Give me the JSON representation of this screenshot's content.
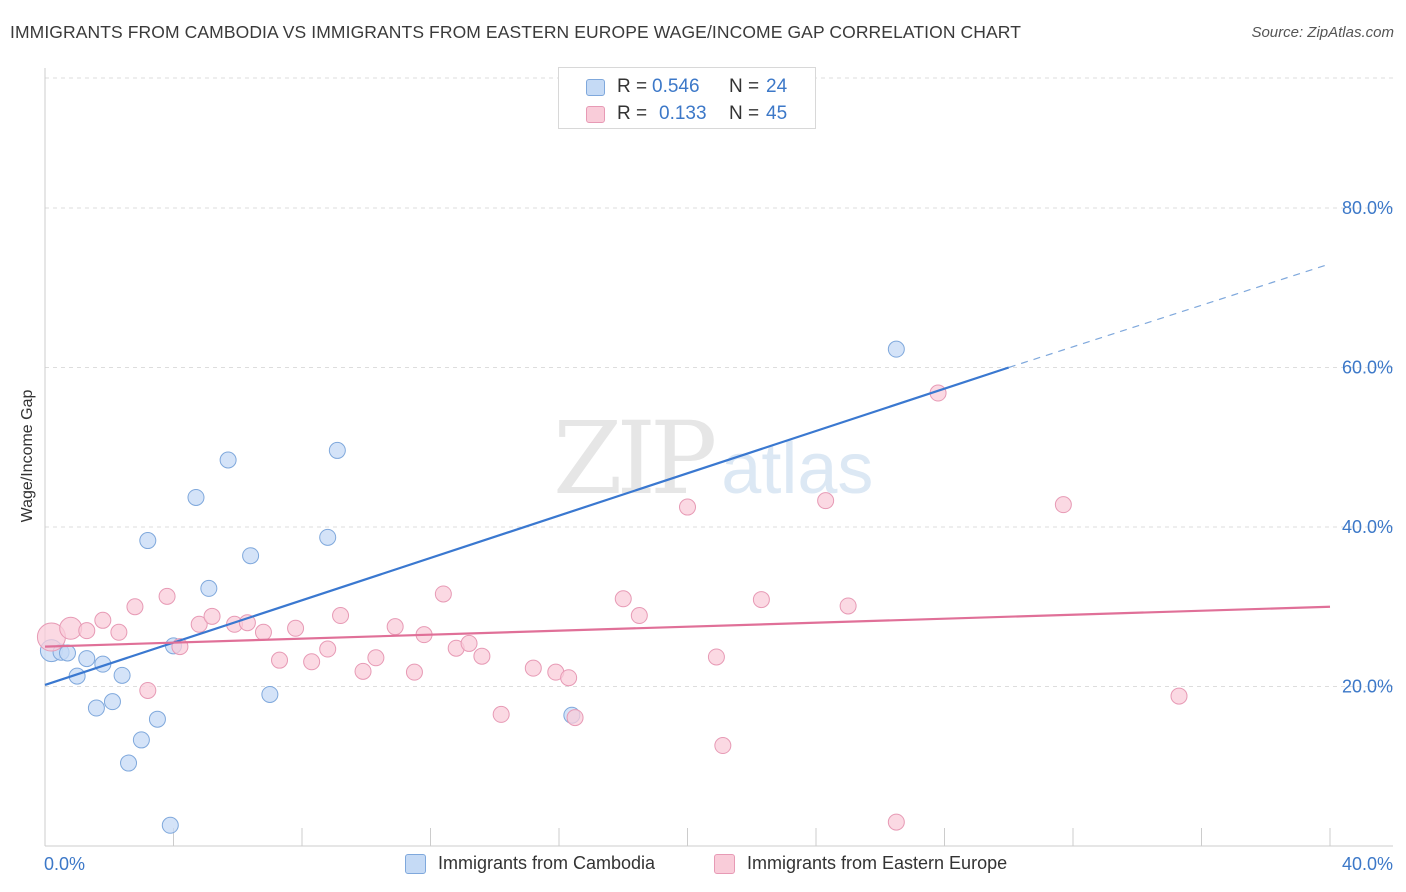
{
  "header": {
    "title": "IMMIGRANTS FROM CAMBODIA VS IMMIGRANTS FROM EASTERN EUROPE WAGE/INCOME GAP CORRELATION CHART",
    "source": "Source: ZipAtlas.com"
  },
  "watermark": {
    "zip": "ZIP",
    "atlas": "atlas"
  },
  "colors": {
    "blue": "#3a78d0",
    "blue_fill": "#c5daf5",
    "pink": "#e07098",
    "pink_fill": "#f9ccd9",
    "axis_text": "#3c78c8",
    "grid": "#dddddd"
  },
  "legend": {
    "rows": [
      {
        "r_label": "R =",
        "r_value": "0.546",
        "n_label": "N =",
        "n_value": "24"
      },
      {
        "r_label": "R =",
        "r_value": "0.133",
        "n_label": "N =",
        "n_value": "45"
      }
    ]
  },
  "bottom_legend": {
    "items": [
      {
        "label": "Immigrants from Cambodia"
      },
      {
        "label": "Immigrants from Eastern Europe"
      }
    ]
  },
  "chart_data": {
    "type": "scatter",
    "title": "IMMIGRANTS FROM CAMBODIA VS IMMIGRANTS FROM EASTERN EUROPE WAGE/INCOME GAP CORRELATION CHART",
    "xlabel": "",
    "ylabel": "Wage/Income Gap",
    "xlim": [
      0,
      40
    ],
    "ylim": [
      0,
      80
    ],
    "x_ticks_labeled": [
      {
        "value": 0,
        "label": "0.0%"
      },
      {
        "value": 40,
        "label": "40.0%"
      }
    ],
    "y_ticks": [
      {
        "value": 20,
        "label": "20.0%"
      },
      {
        "value": 40,
        "label": "40.0%"
      },
      {
        "value": 60,
        "label": "60.0%"
      },
      {
        "value": 80,
        "label": "80.0%"
      }
    ],
    "grid": "horizontal dashed",
    "legend_position": "top-center",
    "series": [
      {
        "name": "Immigrants from Cambodia",
        "color": "#3a78d0",
        "fill": "#c5daf5",
        "R": 0.546,
        "N": 24,
        "trend": {
          "x0": 0,
          "y0": 20.2,
          "x1": 30,
          "y1": 60.0,
          "dashed_to_x": 40,
          "dashed_to_y": 73.0
        },
        "points": [
          [
            0.2,
            24.5
          ],
          [
            0.5,
            24.3
          ],
          [
            0.7,
            24.2
          ],
          [
            1.0,
            21.3
          ],
          [
            1.3,
            23.5
          ],
          [
            1.6,
            17.3
          ],
          [
            1.8,
            22.8
          ],
          [
            2.1,
            18.1
          ],
          [
            2.4,
            21.4
          ],
          [
            2.6,
            10.4
          ],
          [
            3.0,
            13.3
          ],
          [
            3.2,
            38.3
          ],
          [
            3.5,
            15.9
          ],
          [
            3.9,
            2.6
          ],
          [
            4.0,
            25.1
          ],
          [
            4.7,
            43.7
          ],
          [
            5.1,
            32.3
          ],
          [
            5.7,
            48.4
          ],
          [
            6.4,
            36.4
          ],
          [
            7.0,
            19.0
          ],
          [
            8.8,
            38.7
          ],
          [
            9.1,
            49.6
          ],
          [
            16.4,
            16.4
          ],
          [
            26.5,
            62.3
          ]
        ]
      },
      {
        "name": "Immigrants from Eastern Europe",
        "color": "#e07098",
        "fill": "#f9ccd9",
        "R": 0.133,
        "N": 45,
        "trend": {
          "x0": 0,
          "y0": 25.0,
          "x1": 40,
          "y1": 30.0
        },
        "points": [
          [
            0.2,
            26.2
          ],
          [
            0.8,
            27.3
          ],
          [
            1.3,
            27.0
          ],
          [
            1.8,
            28.3
          ],
          [
            2.3,
            26.8
          ],
          [
            2.8,
            30.0
          ],
          [
            3.2,
            19.5
          ],
          [
            3.8,
            31.3
          ],
          [
            4.2,
            25.0
          ],
          [
            4.8,
            27.8
          ],
          [
            5.2,
            28.8
          ],
          [
            5.9,
            27.8
          ],
          [
            6.3,
            28.0
          ],
          [
            6.8,
            26.8
          ],
          [
            7.3,
            23.3
          ],
          [
            7.8,
            27.3
          ],
          [
            8.3,
            23.1
          ],
          [
            8.8,
            24.7
          ],
          [
            9.2,
            28.9
          ],
          [
            9.9,
            21.9
          ],
          [
            10.3,
            23.6
          ],
          [
            10.9,
            27.5
          ],
          [
            11.5,
            21.8
          ],
          [
            11.8,
            26.5
          ],
          [
            12.4,
            31.6
          ],
          [
            12.8,
            24.8
          ],
          [
            13.2,
            25.4
          ],
          [
            13.6,
            23.8
          ],
          [
            14.2,
            16.5
          ],
          [
            15.2,
            22.3
          ],
          [
            15.9,
            21.8
          ],
          [
            16.3,
            21.1
          ],
          [
            16.5,
            16.1
          ],
          [
            18.0,
            31.0
          ],
          [
            18.5,
            28.9
          ],
          [
            20.0,
            42.5
          ],
          [
            20.9,
            23.7
          ],
          [
            21.1,
            12.6
          ],
          [
            22.3,
            30.9
          ],
          [
            24.3,
            43.3
          ],
          [
            25.0,
            30.1
          ],
          [
            27.8,
            56.8
          ],
          [
            26.5,
            3.0
          ],
          [
            31.7,
            42.8
          ],
          [
            35.3,
            18.8
          ]
        ]
      }
    ]
  }
}
